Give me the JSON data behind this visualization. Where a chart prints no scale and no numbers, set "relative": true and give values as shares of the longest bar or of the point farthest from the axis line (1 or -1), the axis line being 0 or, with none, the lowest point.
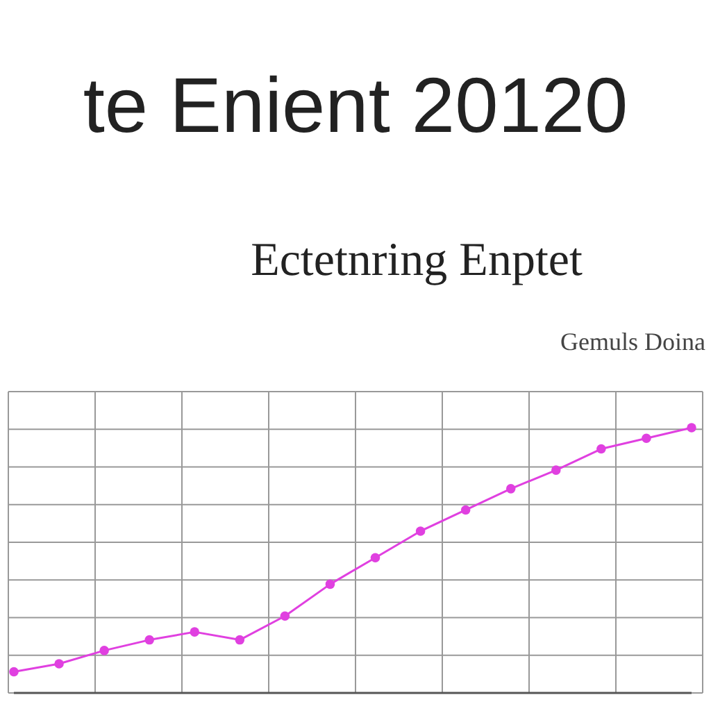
{
  "chart_data": {
    "type": "line",
    "title": "te Enient 20120",
    "subtitle": "Ectetnring Enptet",
    "annotations": [
      "Gemuls Doina"
    ],
    "relative": true,
    "grid": true,
    "marker": "circle",
    "line_style": "solid",
    "categories": [
      null,
      null,
      null,
      null,
      null,
      null,
      null,
      null,
      null,
      null,
      null,
      null,
      null,
      null,
      null,
      null
    ],
    "series": [
      {
        "color": "#e040e0",
        "values": [
          0.08,
          0.11,
          0.16,
          0.2,
          0.23,
          0.2,
          0.29,
          0.41,
          0.51,
          0.61,
          0.69,
          0.77,
          0.84,
          0.92,
          0.96,
          1
        ]
      }
    ]
  }
}
